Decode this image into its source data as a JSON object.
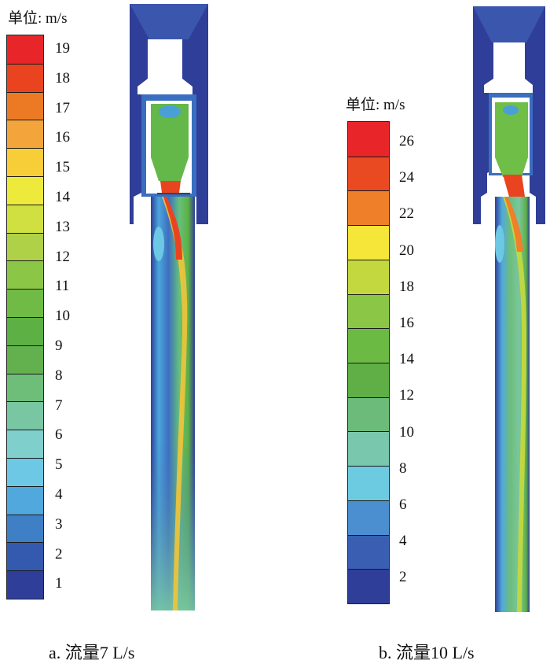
{
  "panel_a": {
    "unit_label": "单位: m/s",
    "ticks": [
      "19",
      "18",
      "17",
      "16",
      "15",
      "14",
      "13",
      "12",
      "11",
      "10",
      "9",
      "8",
      "7",
      "6",
      "5",
      "4",
      "3",
      "2",
      "1"
    ],
    "band_colors": [
      "#e8262a",
      "#e9441f",
      "#ec7a24",
      "#f3a43a",
      "#f7cd38",
      "#eeea3c",
      "#cfe040",
      "#aed148",
      "#8cc647",
      "#70bb46",
      "#5db044",
      "#62b04e",
      "#6ebe7a",
      "#79c6a2",
      "#7fcfcc",
      "#6cc8e4",
      "#50a8dc",
      "#3e7fc6",
      "#345ab0",
      "#2f3e98"
    ],
    "caption": "a. 流量7 L/s"
  },
  "panel_b": {
    "unit_label": "单位: m/s",
    "ticks": [
      "26",
      "24",
      "22",
      "20",
      "18",
      "16",
      "14",
      "12",
      "10",
      "8",
      "6",
      "4",
      "2"
    ],
    "band_colors": [
      "#e8262a",
      "#ea4a22",
      "#ef7f28",
      "#f6e63a",
      "#c3d83f",
      "#8cc647",
      "#6bba44",
      "#5faf46",
      "#6cbb7b",
      "#79c7ad",
      "#6ccbe1",
      "#4b8fd0",
      "#3a5fb2",
      "#2f3e98"
    ],
    "caption": "b. 流量10 L/s"
  }
}
